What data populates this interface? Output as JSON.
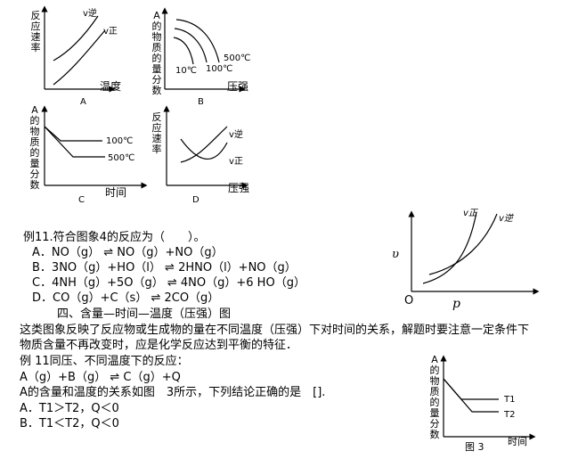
{
  "graphs": {
    "a": {
      "ylabel": "反应速率",
      "xlabel": "温度",
      "caption": "A",
      "c1": "v逆",
      "c2": "v正"
    },
    "b": {
      "ylabel": "A的物质的量分数",
      "xlabel": "压强",
      "caption": "B",
      "c1": "500℃",
      "c2": "100℃",
      "c3": "10℃"
    },
    "c": {
      "ylabel": "A的物质的量分数",
      "xlabel": "时间",
      "caption": "C",
      "c1": "100℃",
      "c2": "500℃"
    },
    "d": {
      "ylabel": "反应速率",
      "xlabel": "压强",
      "caption": "D",
      "c1": "v逆",
      "c2": "v正"
    },
    "fig4": {
      "ylabel": "υ",
      "xlabel": "p",
      "origin": "O",
      "c1": "v正",
      "c2": "v逆"
    },
    "fig3": {
      "ylabel": "A的物质的量分数",
      "xlabel": "时间",
      "caption": "图 3",
      "t1": "T1",
      "t2": "T2"
    }
  },
  "example11": {
    "question": "例11.符合图象4的反应为（　　）。",
    "options": [
      "A．NO（g） ⇌ NO（g）+NO（g）",
      "B．3NO（g）+HO（l） ⇌ 2HNO（l）+NO（g）",
      "C．4NH（g）+5O（g） ⇌ 4NO（g）+6 HO（g）",
      "D．CO（g）+C（s） ⇌ 2CO（g）"
    ]
  },
  "section4": {
    "heading": "四、含量—时间—温度（压强）图",
    "para1": "这类图象反映了反应物或生成物的量在不同温度（压强）下对时间的关系，解题时要注意一定条件下",
    "para2": "物质含量不再改变时，应是化学反应达到平衡的特征．"
  },
  "example11b": {
    "title": "例 11同压、不同温度下的反应：",
    "equation": "A（g）+B（g） ⇌ C（g）+Q",
    "desc": "A的含量和温度的关系如图　3所示，下列结论正确的是　[].",
    "optA": "A．T1＞T2，Q＜0",
    "optB": "B．T1＜T2，Q＜0"
  }
}
